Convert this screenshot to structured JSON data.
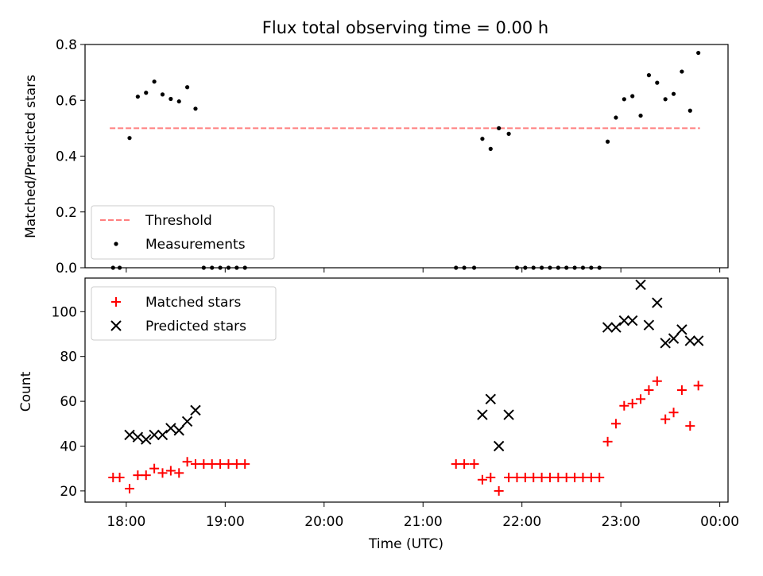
{
  "chart_data": [
    {
      "type": "scatter",
      "title": "Flux total observing time = 0.00 h",
      "ylabel": "Matched/Predicted stars",
      "xlabel": "",
      "x_unit": "time (UTC)",
      "ylim": [
        0,
        0.8
      ],
      "xlim": [
        "17:35",
        "00:05"
      ],
      "yticks": [
        "0.0",
        "0.2",
        "0.4",
        "0.6",
        "0.8"
      ],
      "xtick_labels_shown": false,
      "grid": false,
      "legend_position": "lower-left",
      "threshold": {
        "name": "Threshold",
        "value": 0.5,
        "x_range": [
          "17:50",
          "23:48"
        ],
        "color": "#ff7f7f",
        "style": "dashed"
      },
      "series": [
        {
          "name": "Measurements",
          "color": "#000000",
          "marker": "dot",
          "points": [
            [
              "17:52",
              0.0
            ],
            [
              "17:56",
              0.0
            ],
            [
              "18:02",
              0.465
            ],
            [
              "18:07",
              0.613
            ],
            [
              "18:12",
              0.627
            ],
            [
              "18:17",
              0.667
            ],
            [
              "18:22",
              0.621
            ],
            [
              "18:27",
              0.605
            ],
            [
              "18:32",
              0.596
            ],
            [
              "18:37",
              0.647
            ],
            [
              "18:42",
              0.57
            ],
            [
              "18:47",
              0.0
            ],
            [
              "18:52",
              0.0
            ],
            [
              "18:57",
              0.0
            ],
            [
              "19:02",
              0.0
            ],
            [
              "19:07",
              0.0
            ],
            [
              "19:12",
              0.0
            ],
            [
              "21:20",
              0.0
            ],
            [
              "21:25",
              0.0
            ],
            [
              "21:31",
              0.0
            ],
            [
              "21:36",
              0.462
            ],
            [
              "21:41",
              0.426
            ],
            [
              "21:46",
              0.5
            ],
            [
              "21:52",
              0.48
            ],
            [
              "21:57",
              0.0
            ],
            [
              "22:02",
              0.0
            ],
            [
              "22:07",
              0.0
            ],
            [
              "22:12",
              0.0
            ],
            [
              "22:17",
              0.0
            ],
            [
              "22:22",
              0.0
            ],
            [
              "22:27",
              0.0
            ],
            [
              "22:32",
              0.0
            ],
            [
              "22:37",
              0.0
            ],
            [
              "22:42",
              0.0
            ],
            [
              "22:47",
              0.0
            ],
            [
              "22:52",
              0.452
            ],
            [
              "22:57",
              0.538
            ],
            [
              "23:02",
              0.604
            ],
            [
              "23:07",
              0.615
            ],
            [
              "23:12",
              0.545
            ],
            [
              "23:17",
              0.69
            ],
            [
              "23:22",
              0.663
            ],
            [
              "23:27",
              0.604
            ],
            [
              "23:32",
              0.623
            ],
            [
              "23:37",
              0.703
            ],
            [
              "23:42",
              0.563
            ],
            [
              "23:47",
              0.77
            ]
          ]
        }
      ]
    },
    {
      "type": "scatter",
      "title": "",
      "ylabel": "Count",
      "xlabel": "Time (UTC)",
      "ylim": [
        15,
        115
      ],
      "xlim": [
        "17:35",
        "00:05"
      ],
      "yticks": [
        "20",
        "40",
        "60",
        "80",
        "100"
      ],
      "xticks": [
        "18:00",
        "19:00",
        "20:00",
        "21:00",
        "22:00",
        "23:00",
        "00:00"
      ],
      "grid": false,
      "legend_position": "upper-left",
      "series": [
        {
          "name": "Matched stars",
          "color": "#ff0000",
          "marker": "plus",
          "points": [
            [
              "17:52",
              26
            ],
            [
              "17:56",
              26
            ],
            [
              "18:02",
              21
            ],
            [
              "18:07",
              27
            ],
            [
              "18:12",
              27
            ],
            [
              "18:17",
              30
            ],
            [
              "18:22",
              28
            ],
            [
              "18:27",
              29
            ],
            [
              "18:32",
              28
            ],
            [
              "18:37",
              33
            ],
            [
              "18:42",
              32
            ],
            [
              "18:47",
              32
            ],
            [
              "18:52",
              32
            ],
            [
              "18:57",
              32
            ],
            [
              "19:02",
              32
            ],
            [
              "19:07",
              32
            ],
            [
              "19:12",
              32
            ],
            [
              "21:20",
              32
            ],
            [
              "21:25",
              32
            ],
            [
              "21:31",
              32
            ],
            [
              "21:36",
              25
            ],
            [
              "21:41",
              26
            ],
            [
              "21:46",
              20
            ],
            [
              "21:52",
              26
            ],
            [
              "21:57",
              26
            ],
            [
              "22:02",
              26
            ],
            [
              "22:07",
              26
            ],
            [
              "22:12",
              26
            ],
            [
              "22:17",
              26
            ],
            [
              "22:22",
              26
            ],
            [
              "22:27",
              26
            ],
            [
              "22:32",
              26
            ],
            [
              "22:37",
              26
            ],
            [
              "22:42",
              26
            ],
            [
              "22:47",
              26
            ],
            [
              "22:52",
              42
            ],
            [
              "22:57",
              50
            ],
            [
              "23:02",
              58
            ],
            [
              "23:07",
              59
            ],
            [
              "23:12",
              61
            ],
            [
              "23:17",
              65
            ],
            [
              "23:22",
              69
            ],
            [
              "23:27",
              52
            ],
            [
              "23:32",
              55
            ],
            [
              "23:37",
              65
            ],
            [
              "23:42",
              49
            ],
            [
              "23:47",
              67
            ]
          ]
        },
        {
          "name": "Predicted stars",
          "color": "#000000",
          "marker": "x",
          "points": [
            [
              "18:02",
              45
            ],
            [
              "18:07",
              44
            ],
            [
              "18:12",
              43
            ],
            [
              "18:17",
              45
            ],
            [
              "18:22",
              45
            ],
            [
              "18:27",
              48
            ],
            [
              "18:32",
              47
            ],
            [
              "18:37",
              51
            ],
            [
              "18:42",
              56
            ],
            [
              "21:36",
              54
            ],
            [
              "21:41",
              61
            ],
            [
              "21:46",
              40
            ],
            [
              "21:52",
              54
            ],
            [
              "22:52",
              93
            ],
            [
              "22:57",
              93
            ],
            [
              "23:02",
              96
            ],
            [
              "23:07",
              96
            ],
            [
              "23:12",
              112
            ],
            [
              "23:17",
              94
            ],
            [
              "23:22",
              104
            ],
            [
              "23:27",
              86
            ],
            [
              "23:32",
              88
            ],
            [
              "23:37",
              92
            ],
            [
              "23:42",
              87
            ],
            [
              "23:47",
              87
            ]
          ]
        }
      ]
    }
  ]
}
